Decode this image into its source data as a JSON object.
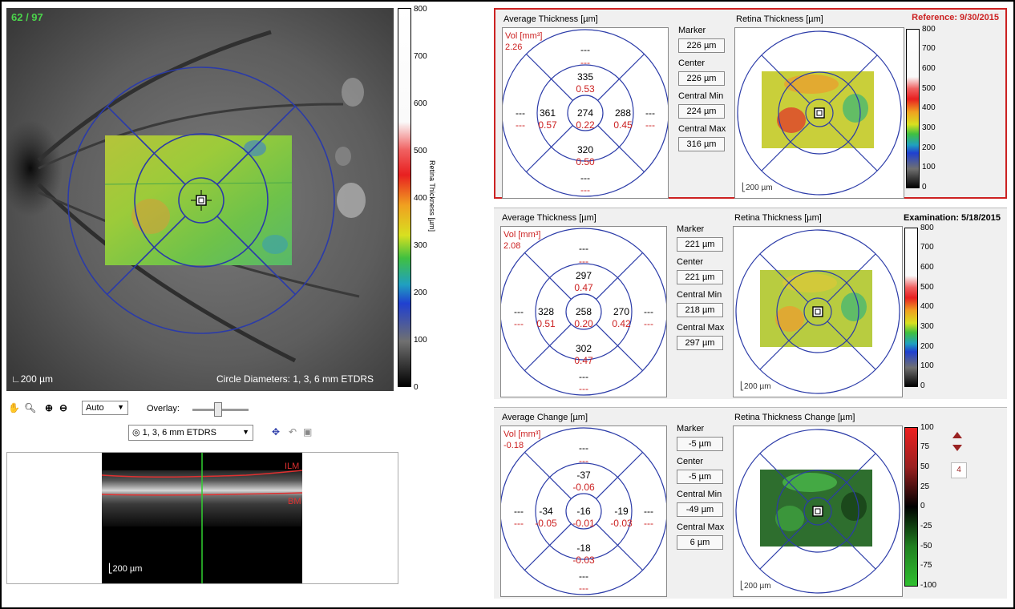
{
  "fundus": {
    "frame_counter": "62 / 97",
    "scale_label": "200 µm",
    "circle_label": "Circle Diameters: 1, 3, 6 mm ETDRS"
  },
  "fundus_colorbar": {
    "ticks": [
      "800",
      "700",
      "600",
      "500",
      "400",
      "300",
      "200",
      "100",
      "0"
    ],
    "label": "Retina Thickness [µm]"
  },
  "toolbar": {
    "auto_select": "Auto",
    "overlay_label": "Overlay:",
    "grid_select": "1, 3, 6 mm ETDRS"
  },
  "oct": {
    "ilm_label": "ILM",
    "bm_label": "BM",
    "scale_label": "200 µm"
  },
  "panels": [
    {
      "title_right": "Reference: 9/30/2015",
      "title_color": "#cc2222",
      "left_title": "Average Thickness [µm]",
      "map_title": "Retina Thickness [µm]",
      "vol_label": "Vol [mm³]",
      "vol_value": "2.26",
      "sectors": {
        "outer_top": [
          "---",
          "---"
        ],
        "inner_top": [
          "335",
          "0.53"
        ],
        "outer_left": [
          "---",
          "---"
        ],
        "inner_left": [
          "361",
          "0.57"
        ],
        "center": [
          "274",
          "0.22"
        ],
        "inner_right": [
          "288",
          "0.45"
        ],
        "outer_right": [
          "---",
          "---"
        ],
        "inner_bottom": [
          "320",
          "0.50"
        ],
        "outer_bottom": [
          "---",
          "---"
        ]
      },
      "metrics": [
        {
          "label": "Marker",
          "value": "226 µm"
        },
        {
          "label": "Center",
          "value": "226 µm"
        },
        {
          "label": "Central Min",
          "value": "224 µm"
        },
        {
          "label": "Central Max",
          "value": "316 µm"
        }
      ],
      "scale_label": "200 µm",
      "colorbar_ticks": [
        "800",
        "700",
        "600",
        "500",
        "400",
        "300",
        "200",
        "100",
        "0"
      ]
    },
    {
      "title_right": "Examination: 5/18/2015",
      "title_color": "#000000",
      "left_title": "Average Thickness [µm]",
      "map_title": "Retina Thickness [µm]",
      "vol_label": "Vol [mm³]",
      "vol_value": "2.08",
      "sectors": {
        "outer_top": [
          "---",
          "---"
        ],
        "inner_top": [
          "297",
          "0.47"
        ],
        "outer_left": [
          "---",
          "---"
        ],
        "inner_left": [
          "328",
          "0.51"
        ],
        "center": [
          "258",
          "0.20"
        ],
        "inner_right": [
          "270",
          "0.42"
        ],
        "outer_right": [
          "---",
          "---"
        ],
        "inner_bottom": [
          "302",
          "0.47"
        ],
        "outer_bottom": [
          "---",
          "---"
        ]
      },
      "metrics": [
        {
          "label": "Marker",
          "value": "221 µm"
        },
        {
          "label": "Center",
          "value": "221 µm"
        },
        {
          "label": "Central Min",
          "value": "218 µm"
        },
        {
          "label": "Central Max",
          "value": "297 µm"
        }
      ],
      "scale_label": "200 µm",
      "colorbar_ticks": [
        "800",
        "700",
        "600",
        "500",
        "400",
        "300",
        "200",
        "100",
        "0"
      ]
    },
    {
      "title_right": "",
      "title_color": "#000000",
      "left_title": "Average Change [µm]",
      "map_title": "Retina Thickness Change [µm]",
      "vol_label": "Vol [mm³]",
      "vol_value": "-0.18",
      "sectors": {
        "outer_top": [
          "---",
          "---"
        ],
        "inner_top": [
          "-37",
          "-0.06"
        ],
        "outer_left": [
          "---",
          "---"
        ],
        "inner_left": [
          "-34",
          "-0.05"
        ],
        "center": [
          "-16",
          "-0.01"
        ],
        "inner_right": [
          "-19",
          "-0.03"
        ],
        "outer_right": [
          "---",
          "---"
        ],
        "inner_bottom": [
          "-18",
          "-0.03"
        ],
        "outer_bottom": [
          "---",
          "---"
        ]
      },
      "metrics": [
        {
          "label": "Marker",
          "value": "-5 µm"
        },
        {
          "label": "Center",
          "value": "-5 µm"
        },
        {
          "label": "Central Min",
          "value": "-49 µm"
        },
        {
          "label": "Central Max",
          "value": "6 µm"
        }
      ],
      "scale_label": "200 µm",
      "colorbar_ticks": [
        "100",
        "75",
        "50",
        "25",
        "0",
        "-25",
        "-50",
        "-75",
        "-100"
      ],
      "step_value": "4"
    }
  ],
  "colors": {
    "grid_blue": "#2b3ba8",
    "value_red": "#cc2222",
    "reference_border": "#cc2222"
  }
}
